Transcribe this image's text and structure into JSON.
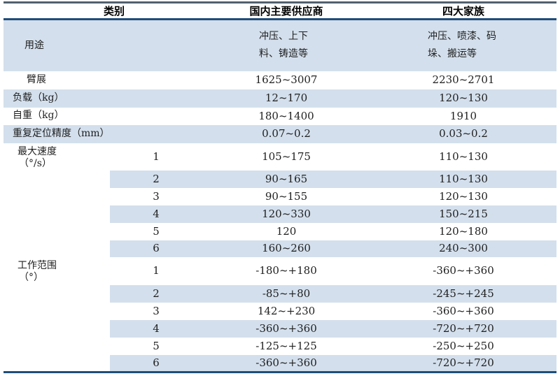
{
  "colors": {
    "stripe_blue": "#d3dfec",
    "rule_navy": "#1f4e79",
    "rule_top": "#52616e",
    "text_color": "#1f1f1f"
  },
  "table": {
    "header": {
      "category": "类别",
      "domestic": "国内主要供应商",
      "big_four": "四大家族"
    },
    "usage": {
      "label": "用途",
      "domestic": "冲压、上下料、铸造等",
      "big_four": "冲压、喷漆、码垛、搬运等"
    },
    "specs": [
      {
        "label": "臂展",
        "domestic": "1625~3007",
        "big_four": "2230~2701"
      },
      {
        "label": "负载（kg）",
        "domestic": "12~170",
        "big_four": "120~130"
      },
      {
        "label": "自重（kg）",
        "domestic": "180~1400",
        "big_four": "1910"
      },
      {
        "label": "重复定位精度（mm）",
        "domestic": "0.07~0.2",
        "big_four": "0.03~0.2"
      }
    ],
    "max_speed": {
      "label": "最大速度",
      "unit": "（°/s）",
      "rows": [
        {
          "axis": "1",
          "domestic": "105~175",
          "big_four": "110~130"
        },
        {
          "axis": "2",
          "domestic": "90~165",
          "big_four": "110~130"
        },
        {
          "axis": "3",
          "domestic": "90~155",
          "big_four": "120~130"
        },
        {
          "axis": "4",
          "domestic": "120~330",
          "big_four": "150~215"
        },
        {
          "axis": "5",
          "domestic": "120",
          "big_four": "120~180"
        },
        {
          "axis": "6",
          "domestic": "160~260",
          "big_four": "240~300"
        }
      ]
    },
    "work_range": {
      "label": "工作范围",
      "unit": "（°）",
      "rows": [
        {
          "axis": "1",
          "domestic": "-180~+180",
          "big_four": "-360~+360"
        },
        {
          "axis": "2",
          "domestic": "-85~+80",
          "big_four": "-245~+245"
        },
        {
          "axis": "3",
          "domestic": "142~+230",
          "big_four": "-360~+360"
        },
        {
          "axis": "4",
          "domestic": "-360~+360",
          "big_four": "-720~+720"
        },
        {
          "axis": "5",
          "domestic": "-125~+125",
          "big_four": "-250~+250"
        },
        {
          "axis": "6",
          "domestic": "-360~+360",
          "big_four": "-720~+720"
        }
      ]
    }
  }
}
